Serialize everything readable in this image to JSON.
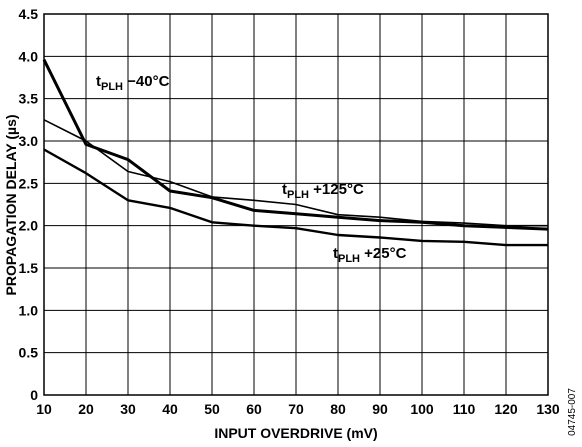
{
  "chart_data": {
    "type": "line",
    "title": "",
    "xlabel": "INPUT OVERDRIVE (mV)",
    "ylabel": "PROPAGATION DELAY (µs)",
    "xlim": [
      10,
      130
    ],
    "ylim": [
      0,
      4.5
    ],
    "x_ticks": [
      10,
      20,
      30,
      40,
      50,
      60,
      70,
      80,
      90,
      100,
      110,
      120,
      130
    ],
    "y_ticks": [
      "0",
      "0.5",
      "1.0",
      "1.5",
      "2.0",
      "2.5",
      "3.0",
      "3.5",
      "4.0",
      "4.5"
    ],
    "grid": true,
    "x": [
      10,
      20,
      30,
      40,
      50,
      60,
      70,
      80,
      90,
      100,
      110,
      120,
      130
    ],
    "series": [
      {
        "name": "t",
        "sub": "PLH",
        "suffix": " −40°C",
        "values": [
          3.96,
          2.96,
          2.78,
          2.41,
          2.33,
          2.18,
          2.14,
          2.1,
          2.06,
          2.04,
          2.0,
          1.98,
          1.96
        ]
      },
      {
        "name": "t",
        "sub": "PLH",
        "suffix": " +125°C",
        "values": [
          3.25,
          3.0,
          2.64,
          2.52,
          2.34,
          2.3,
          2.25,
          2.13,
          2.1,
          2.05,
          2.03,
          2.0,
          2.0
        ]
      },
      {
        "name": "t",
        "sub": "PLH",
        "suffix": " +25°C",
        "values": [
          2.9,
          2.62,
          2.3,
          2.21,
          2.04,
          2.0,
          1.97,
          1.89,
          1.86,
          1.82,
          1.81,
          1.77,
          1.77
        ]
      }
    ],
    "figure_id": "04745-007"
  }
}
